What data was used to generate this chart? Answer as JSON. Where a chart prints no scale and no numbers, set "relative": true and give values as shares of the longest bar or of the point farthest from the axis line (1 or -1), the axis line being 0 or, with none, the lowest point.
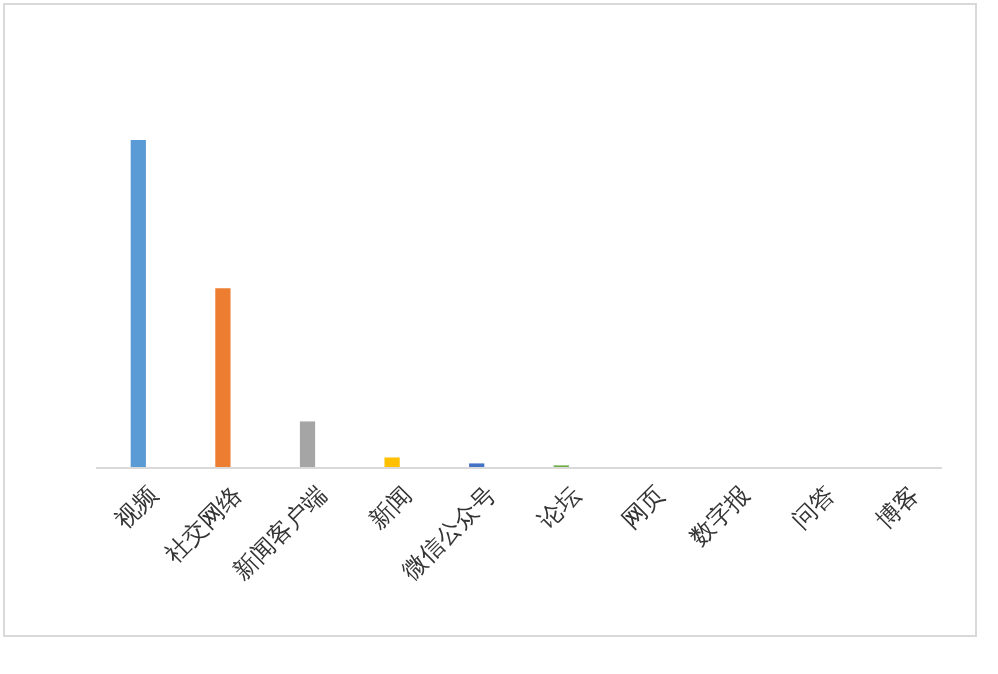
{
  "chart_data": {
    "type": "bar",
    "relative": true,
    "categories": [
      "视频",
      "社交网络",
      "新闻客户端",
      "新闻",
      "微信公众号",
      "论坛",
      "网页",
      "数字报",
      "问答",
      "博客"
    ],
    "values": [
      1,
      0.548,
      0.142,
      0.032,
      0.014,
      0.008,
      0,
      0,
      0,
      0
    ],
    "colors": [
      "#5b9bd5",
      "#ed7d31",
      "#a5a5a5",
      "#ffc000",
      "#4472c4",
      "#70ad47",
      "#264478",
      "#9e480e",
      "#636363",
      "#997300"
    ]
  }
}
